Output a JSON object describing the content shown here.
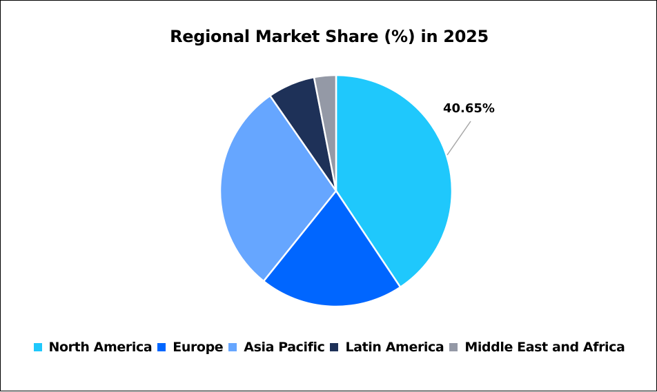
{
  "chart_data": {
    "type": "pie",
    "title": "Regional Market Share (%) in 2025",
    "categories": [
      "North America",
      "Europe",
      "Asia Pacific",
      "Latin America",
      "Middle East and Africa"
    ],
    "values": [
      40.65,
      20.1,
      29.6,
      6.6,
      3.05
    ],
    "colors": [
      "#1FC8FC",
      "#0066FF",
      "#66A6FF",
      "#1E3158",
      "#9499A6"
    ],
    "data_labels": [
      {
        "category": "North America",
        "text": "40.65%"
      }
    ],
    "legend_position": "bottom",
    "start_angle_deg": 0,
    "direction": "clockwise"
  },
  "title": "Regional Market Share (%) in 2025",
  "data_label": "40.65%",
  "legend": [
    {
      "label": "North America",
      "color": "#1FC8FC"
    },
    {
      "label": "Europe",
      "color": "#0066FF"
    },
    {
      "label": "Asia Pacific",
      "color": "#66A6FF"
    },
    {
      "label": "Latin America",
      "color": "#1E3158"
    },
    {
      "label": "Middle East and Africa",
      "color": "#9499A6"
    }
  ]
}
